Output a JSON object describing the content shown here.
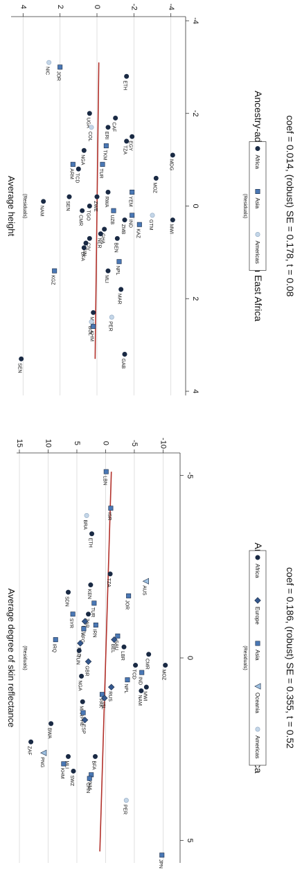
{
  "colors": {
    "africa": "#1a2a44",
    "europe": "#34588e",
    "asia": "#4a78b5",
    "oceania": "#9ec0e0",
    "americas": "#c4d6e8",
    "fit_line": "#b2302a",
    "grid": "#d9d9d9"
  },
  "chart_data": [
    {
      "type": "scatter",
      "panel": "skin",
      "title": "",
      "xlabel": "Ancestry-adjusted migratory distance from East Africa",
      "xlabel_sub": "(Residuals)",
      "ylabel": "Average degree of skin reflectance",
      "ylabel_sub": "(Residuals)",
      "caption": "coef = 0.186, (robust) SE = 0.355, t = 0.52",
      "xlim": [
        -5.5,
        5.5
      ],
      "ylim": [
        -12,
        15
      ],
      "xticks": [
        -5,
        0,
        5
      ],
      "yticks": [
        -10,
        -5,
        0,
        5,
        10,
        15
      ],
      "grid": true,
      "legend_position": "bottom",
      "legend": [
        {
          "label": "Africa",
          "group": "africa",
          "shape": "circle"
        },
        {
          "label": "Europe",
          "group": "europe",
          "shape": "diamond"
        },
        {
          "label": "Asia",
          "group": "asia",
          "shape": "square"
        },
        {
          "label": "Oceania",
          "group": "oceania",
          "shape": "triangle"
        },
        {
          "label": "Americas",
          "group": "americas",
          "shape": "circle"
        }
      ],
      "fit_line": {
        "x": [
          -5.1,
          5.3
        ],
        "y": [
          -1.0,
          1.0
        ]
      },
      "points": [
        {
          "label": "LBN",
          "group": "asia",
          "x": -5.1,
          "y": -0.1
        },
        {
          "label": "ISR",
          "group": "asia",
          "x": -4.1,
          "y": -0.9
        },
        {
          "label": "BRA",
          "group": "americas",
          "x": -3.9,
          "y": 3.3
        },
        {
          "label": "ETH",
          "group": "africa",
          "x": -3.4,
          "y": 2.4
        },
        {
          "label": "TZA",
          "group": "africa",
          "x": -2.3,
          "y": -0.8
        },
        {
          "label": "AUS",
          "group": "oceania",
          "x": -2.1,
          "y": -7.0
        },
        {
          "label": "KEN",
          "group": "africa",
          "x": -2.0,
          "y": 2.6
        },
        {
          "label": "SDN",
          "group": "africa",
          "x": -1.8,
          "y": 6.5
        },
        {
          "label": "JOR",
          "group": "asia",
          "x": -1.7,
          "y": -4.0
        },
        {
          "label": "TUR",
          "group": "asia",
          "x": -1.5,
          "y": 2.0
        },
        {
          "label": "SYR",
          "group": "asia",
          "x": -1.2,
          "y": 5.7
        },
        {
          "label": "ZAR",
          "group": "africa",
          "x": -1.2,
          "y": 3.0
        },
        {
          "label": "DEU",
          "group": "europe",
          "x": -1.0,
          "y": 3.6
        },
        {
          "label": "IRN",
          "group": "asia",
          "x": -0.9,
          "y": 1.7
        },
        {
          "label": "AFG",
          "group": "asia",
          "x": -0.8,
          "y": 3.8
        },
        {
          "label": "SAU",
          "group": "asia",
          "x": -0.6,
          "y": -2.1
        },
        {
          "label": "IRQ",
          "group": "asia",
          "x": -0.5,
          "y": 8.7
        },
        {
          "label": "BEL",
          "group": "europe",
          "x": -0.5,
          "y": -1.5
        },
        {
          "label": "NLD",
          "group": "europe",
          "x": -0.4,
          "y": 4.4
        },
        {
          "label": "LBR",
          "group": "africa",
          "x": -0.3,
          "y": -3.2
        },
        {
          "label": "TUN",
          "group": "africa",
          "x": -0.2,
          "y": 4.6
        },
        {
          "label": "CMR",
          "group": "africa",
          "x": -0.1,
          "y": -7.5
        },
        {
          "label": "GBR",
          "group": "europe",
          "x": 0.1,
          "y": 3.0
        },
        {
          "label": "MOZ",
          "group": "africa",
          "x": 0.2,
          "y": -10.4
        },
        {
          "label": "TCD",
          "group": "africa",
          "x": 0.2,
          "y": -5.2
        },
        {
          "label": "IND",
          "group": "asia",
          "x": 0.4,
          "y": -6.3
        },
        {
          "label": "NGA",
          "group": "africa",
          "x": 0.5,
          "y": 4.2
        },
        {
          "label": "NPL",
          "group": "asia",
          "x": 0.6,
          "y": -3.8
        },
        {
          "label": "RUS",
          "group": "europe",
          "x": 0.8,
          "y": -1.0
        },
        {
          "label": "MWI",
          "group": "africa",
          "x": 0.8,
          "y": -7.1
        },
        {
          "label": "NAM",
          "group": "africa",
          "x": 0.9,
          "y": -6.2
        },
        {
          "label": "PAK",
          "group": "asia",
          "x": 1.0,
          "y": 0.6
        },
        {
          "label": "ISL",
          "group": "europe",
          "x": 1.1,
          "y": 0.2
        },
        {
          "label": "MAR",
          "group": "africa",
          "x": 1.2,
          "y": 4.0
        },
        {
          "label": "PHL",
          "group": "asia",
          "x": 1.5,
          "y": 3.9
        },
        {
          "label": "ESP",
          "group": "europe",
          "x": 1.7,
          "y": 3.6
        },
        {
          "label": "BWA",
          "group": "africa",
          "x": 1.8,
          "y": 9.5
        },
        {
          "label": "ZAF",
          "group": "africa",
          "x": 2.3,
          "y": 13.0
        },
        {
          "label": "PNG",
          "group": "oceania",
          "x": 2.6,
          "y": 10.8
        },
        {
          "label": "BFA",
          "group": "africa",
          "x": 2.7,
          "y": 1.8
        },
        {
          "label": "MLI",
          "group": "africa",
          "x": 2.7,
          "y": 6.5
        },
        {
          "label": "KHM",
          "group": "asia",
          "x": 2.9,
          "y": 7.3
        },
        {
          "label": "SWZ",
          "group": "africa",
          "x": 3.1,
          "y": 5.6
        },
        {
          "label": "VNM",
          "group": "asia",
          "x": 3.2,
          "y": 2.5
        },
        {
          "label": "CHN",
          "group": "asia",
          "x": 3.3,
          "y": 2.8
        },
        {
          "label": "PER",
          "group": "americas",
          "x": 3.9,
          "y": -3.6
        },
        {
          "label": "JPN",
          "group": "asia",
          "x": 5.4,
          "y": -9.8
        }
      ]
    },
    {
      "type": "scatter",
      "panel": "height",
      "title": "",
      "xlabel": "Ancestry-adjusted migratory distance from East Africa",
      "xlabel_sub": "(Residuals)",
      "ylabel": "Average height",
      "ylabel_sub": "(Residuals)",
      "caption": "coef = 0.014, (robust) SE = 0.178, t = 0.08",
      "xlim": [
        -4.0,
        4.0
      ],
      "ylim": [
        -4.5,
        4.5
      ],
      "xticks": [
        -4,
        -2,
        0,
        2,
        4
      ],
      "yticks": [
        -4,
        -2,
        0,
        2,
        4
      ],
      "grid": true,
      "legend_position": "bottom",
      "legend": [
        {
          "label": "Africa",
          "group": "africa",
          "shape": "circle"
        },
        {
          "label": "Asia",
          "group": "asia",
          "shape": "square"
        },
        {
          "label": "Americas",
          "group": "americas",
          "shape": "circle"
        }
      ],
      "fit_line": {
        "x": [
          -3.1,
          3.3
        ],
        "y": [
          -0.1,
          0.1
        ]
      },
      "points": [
        {
          "label": "NIC",
          "group": "americas",
          "x": -3.1,
          "y": 2.6
        },
        {
          "label": "JOR",
          "group": "asia",
          "x": -3.0,
          "y": 2.0
        },
        {
          "label": "ETH",
          "group": "africa",
          "x": -2.8,
          "y": -1.6
        },
        {
          "label": "UGA",
          "group": "africa",
          "x": -2.0,
          "y": 0.4
        },
        {
          "label": "CAF",
          "group": "africa",
          "x": -1.9,
          "y": -1.0
        },
        {
          "label": "COL",
          "group": "americas",
          "x": -1.7,
          "y": 0.3
        },
        {
          "label": "ERI",
          "group": "africa",
          "x": -1.7,
          "y": -0.6
        },
        {
          "label": "EGY",
          "group": "africa",
          "x": -1.5,
          "y": -1.9
        },
        {
          "label": "TZA",
          "group": "africa",
          "x": -1.4,
          "y": -1.6
        },
        {
          "label": "TKM",
          "group": "asia",
          "x": -1.3,
          "y": -0.5
        },
        {
          "label": "NGA",
          "group": "africa",
          "x": -1.2,
          "y": 0.7
        },
        {
          "label": "MDG",
          "group": "africa",
          "x": -1.1,
          "y": -4.1
        },
        {
          "label": "TUR",
          "group": "asia",
          "x": -0.9,
          "y": -0.3
        },
        {
          "label": "ARM",
          "group": "asia",
          "x": -0.9,
          "y": 1.3
        },
        {
          "label": "TCD",
          "group": "africa",
          "x": -0.8,
          "y": 1.0
        },
        {
          "label": "MOZ",
          "group": "africa",
          "x": -0.6,
          "y": -3.2
        },
        {
          "label": "YEM",
          "group": "asia",
          "x": -0.3,
          "y": -1.9
        },
        {
          "label": "RWA",
          "group": "africa",
          "x": -0.3,
          "y": -0.6
        },
        {
          "label": "ZWE",
          "group": "africa",
          "x": -0.2,
          "y": 0.0
        },
        {
          "label": "SEN",
          "group": "africa",
          "x": -0.2,
          "y": 1.5
        },
        {
          "label": "NAM",
          "group": "africa",
          "x": -0.1,
          "y": 2.9
        },
        {
          "label": "TGO",
          "group": "africa",
          "x": 0.0,
          "y": 0.4
        },
        {
          "label": "UZB",
          "group": "asia",
          "x": 0.1,
          "y": -0.9
        },
        {
          "label": "CMR",
          "group": "africa",
          "x": 0.1,
          "y": 0.8
        },
        {
          "label": "GTM",
          "group": "americas",
          "x": 0.2,
          "y": -3.0
        },
        {
          "label": "IND",
          "group": "asia",
          "x": 0.2,
          "y": -1.9
        },
        {
          "label": "MWI",
          "group": "africa",
          "x": 0.3,
          "y": -4.1
        },
        {
          "label": "ZMB",
          "group": "africa",
          "x": 0.3,
          "y": -1.5
        },
        {
          "label": "KAZ",
          "group": "asia",
          "x": 0.4,
          "y": -2.3
        },
        {
          "label": "GHA",
          "group": "africa",
          "x": 0.5,
          "y": -0.4
        },
        {
          "label": "NER",
          "group": "africa",
          "x": 0.6,
          "y": -0.2
        },
        {
          "label": "BEN",
          "group": "africa",
          "x": 0.7,
          "y": -1.1
        },
        {
          "label": "CIV",
          "group": "africa",
          "x": 0.7,
          "y": 0.4
        },
        {
          "label": "GIN",
          "group": "africa",
          "x": 0.8,
          "y": 0.6
        },
        {
          "label": "BFA",
          "group": "africa",
          "x": 0.9,
          "y": 0.7
        },
        {
          "label": "NPL",
          "group": "asia",
          "x": 1.2,
          "y": -1.2
        },
        {
          "label": "MLI",
          "group": "africa",
          "x": 1.4,
          "y": -0.6
        },
        {
          "label": "KGZ",
          "group": "asia",
          "x": 1.4,
          "y": 2.3
        },
        {
          "label": "MAR",
          "group": "africa",
          "x": 1.8,
          "y": -1.3
        },
        {
          "label": "MRT",
          "group": "africa",
          "x": 2.3,
          "y": 0.2
        },
        {
          "label": "BOL",
          "group": "americas",
          "x": 2.5,
          "y": 0.3
        },
        {
          "label": "KHM",
          "group": "asia",
          "x": 2.6,
          "y": 0.2
        },
        {
          "label": "PER",
          "group": "americas",
          "x": 2.4,
          "y": -0.8
        },
        {
          "label": "GAB",
          "group": "africa",
          "x": 3.2,
          "y": -1.5
        },
        {
          "label": "SEN",
          "group": "africa",
          "x": 3.3,
          "y": 4.1
        }
      ]
    }
  ]
}
